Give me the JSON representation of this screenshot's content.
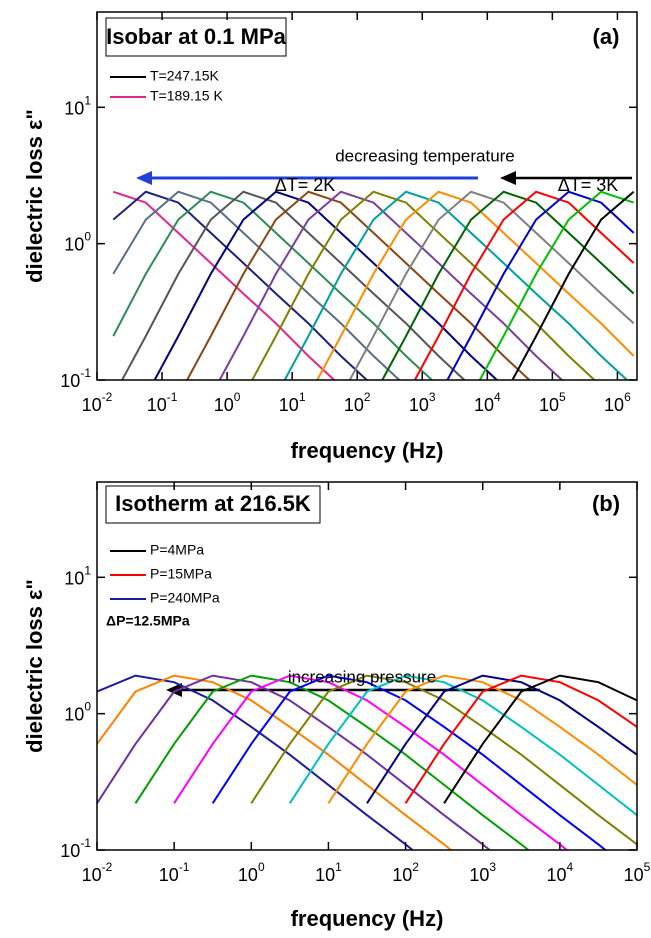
{
  "chart_data": [
    {
      "type": "line",
      "xlabel": "frequency (Hz)",
      "ylabel": "dielectric loss ε\"",
      "xscale": "log",
      "yscale": "log",
      "annotations": [
        "Isobar at 0.1 MPa",
        "(a)",
        "decreasing temperature",
        "ΔT= 2K",
        "ΔT= 3K"
      ],
      "xlim": [
        0.01,
        2000000
      ],
      "ylim": [
        0.1,
        50
      ],
      "xticks": [
        {
          "value": 0.01,
          "label": "10",
          "exponent": "-2"
        },
        {
          "value": 0.1,
          "label": "10",
          "exponent": "-1"
        },
        {
          "value": 1,
          "label": "10",
          "exponent": "0"
        },
        {
          "value": 10,
          "label": "10",
          "exponent": "1"
        },
        {
          "value": 100,
          "label": "10",
          "exponent": "2"
        },
        {
          "value": 1000,
          "label": "10",
          "exponent": "3"
        },
        {
          "value": 10000,
          "label": "10",
          "exponent": "4"
        },
        {
          "value": 100000,
          "label": "10",
          "exponent": "5"
        },
        {
          "value": 1000000,
          "label": "10",
          "exponent": "6"
        }
      ],
      "yticks": [
        {
          "value": 0.1,
          "label": "10",
          "exponent": "-1"
        },
        {
          "value": 1,
          "label": "10",
          "exponent": "0"
        },
        {
          "value": 10,
          "label": "10",
          "exponent": "1"
        }
      ],
      "x": [
        0.0178,
        0.0562,
        0.178,
        0.562,
        1.78,
        5.62,
        17.8,
        56.2,
        178,
        562,
        1780,
        5620,
        17800,
        56200,
        178000,
        562000,
        1780000
      ],
      "series": [
        {
          "name": "T=189.15 K",
          "color": "#e6268c",
          "values": [
            2.4,
            2.0,
            1.2,
            0.72,
            0.43,
            0.26,
            0.15,
            0.09,
            null,
            null,
            null,
            null,
            null,
            null,
            null,
            null,
            null
          ]
        },
        {
          "color": "#1a237e",
          "values": [
            1.5,
            2.4,
            2.0,
            1.2,
            0.72,
            0.43,
            0.26,
            0.15,
            0.09,
            null,
            null,
            null,
            null,
            null,
            null,
            null,
            null
          ]
        },
        {
          "color": "#5a6e8c",
          "values": [
            0.6,
            1.5,
            2.4,
            2.0,
            1.2,
            0.72,
            0.43,
            0.26,
            0.15,
            0.09,
            null,
            null,
            null,
            null,
            null,
            null,
            null
          ]
        },
        {
          "color": "#2e8b57",
          "values": [
            0.21,
            0.6,
            1.5,
            2.4,
            2.0,
            1.2,
            0.72,
            0.43,
            0.26,
            0.15,
            0.09,
            null,
            null,
            null,
            null,
            null,
            null
          ]
        },
        {
          "color": "#555555",
          "values": [
            0.076,
            0.21,
            0.6,
            1.5,
            2.4,
            2.0,
            1.2,
            0.72,
            0.43,
            0.26,
            0.15,
            0.09,
            null,
            null,
            null,
            null,
            null
          ]
        },
        {
          "color": "#000080",
          "values": [
            null,
            0.076,
            0.21,
            0.6,
            1.5,
            2.4,
            2.0,
            1.2,
            0.72,
            0.43,
            0.26,
            0.15,
            0.09,
            null,
            null,
            null,
            null
          ]
        },
        {
          "color": "#8b4513",
          "values": [
            null,
            null,
            0.076,
            0.21,
            0.6,
            1.5,
            2.4,
            2.0,
            1.2,
            0.72,
            0.43,
            0.26,
            0.15,
            0.09,
            null,
            null,
            null
          ]
        },
        {
          "color": "#7b3f9e",
          "values": [
            null,
            null,
            null,
            0.076,
            0.21,
            0.6,
            1.5,
            2.4,
            2.0,
            1.2,
            0.72,
            0.43,
            0.26,
            0.15,
            0.09,
            null,
            null
          ]
        },
        {
          "color": "#808000",
          "values": [
            null,
            null,
            null,
            null,
            0.076,
            0.21,
            0.6,
            1.5,
            2.4,
            2.0,
            1.2,
            0.72,
            0.43,
            0.26,
            0.15,
            0.09,
            null
          ]
        },
        {
          "color": "#00a0a0",
          "values": [
            null,
            null,
            null,
            null,
            null,
            0.076,
            0.21,
            0.6,
            1.5,
            2.4,
            2.0,
            1.2,
            0.72,
            0.43,
            0.26,
            0.15,
            0.09
          ]
        },
        {
          "color": "#ff8c00",
          "values": [
            null,
            null,
            null,
            null,
            null,
            null,
            0.076,
            0.21,
            0.6,
            1.5,
            2.4,
            2.0,
            1.2,
            0.72,
            0.43,
            0.26,
            0.15
          ]
        },
        {
          "color": "#808080",
          "values": [
            null,
            null,
            null,
            null,
            null,
            null,
            null,
            0.076,
            0.21,
            0.6,
            1.5,
            2.4,
            2.0,
            1.2,
            0.72,
            0.43,
            0.26
          ]
        },
        {
          "color": "#006400",
          "values": [
            null,
            null,
            null,
            null,
            null,
            null,
            null,
            null,
            0.076,
            0.21,
            0.6,
            1.5,
            2.4,
            2.0,
            1.2,
            0.72,
            0.43
          ]
        },
        {
          "color": "#ff0000",
          "values": [
            null,
            null,
            null,
            null,
            null,
            null,
            null,
            null,
            null,
            0.076,
            0.21,
            0.6,
            1.5,
            2.4,
            2.0,
            1.2,
            0.72
          ]
        },
        {
          "color": "#0000cd",
          "values": [
            null,
            null,
            null,
            null,
            null,
            null,
            null,
            null,
            null,
            null,
            0.076,
            0.21,
            0.6,
            1.5,
            2.4,
            2.0,
            1.2
          ]
        },
        {
          "color": "#00c000",
          "values": [
            null,
            null,
            null,
            null,
            null,
            null,
            null,
            null,
            null,
            null,
            null,
            0.076,
            0.21,
            0.6,
            1.5,
            2.4,
            2.0
          ]
        },
        {
          "name": "T=247.15K",
          "color": "#000000",
          "values": [
            null,
            null,
            null,
            null,
            null,
            null,
            null,
            null,
            null,
            null,
            null,
            null,
            0.076,
            0.21,
            0.6,
            1.5,
            2.4
          ]
        }
      ]
    },
    {
      "type": "line",
      "xlabel": "frequency (Hz)",
      "ylabel": "dielectric loss ε\"",
      "xscale": "log",
      "yscale": "log",
      "annotations": [
        "Isotherm at 216.5K",
        "(b)",
        "increasing pressure",
        "ΔP=12.5MPa"
      ],
      "xlim": [
        0.01,
        100000
      ],
      "ylim": [
        0.1,
        50
      ],
      "xticks": [
        {
          "value": 0.01,
          "label": "10",
          "exponent": "-2"
        },
        {
          "value": 0.1,
          "label": "10",
          "exponent": "-1"
        },
        {
          "value": 1,
          "label": "10",
          "exponent": "0"
        },
        {
          "value": 10,
          "label": "10",
          "exponent": "1"
        },
        {
          "value": 100,
          "label": "10",
          "exponent": "2"
        },
        {
          "value": 1000,
          "label": "10",
          "exponent": "3"
        },
        {
          "value": 10000,
          "label": "10",
          "exponent": "4"
        },
        {
          "value": 100000,
          "label": "10",
          "exponent": "5"
        }
      ],
      "yticks": [
        {
          "value": 0.1,
          "label": "10",
          "exponent": "-1"
        },
        {
          "value": 1,
          "label": "10",
          "exponent": "0"
        },
        {
          "value": 10,
          "label": "10",
          "exponent": "1"
        }
      ],
      "x": [
        0.01,
        0.0316,
        0.1,
        0.316,
        1,
        3.16,
        10,
        31.6,
        100,
        316,
        1000,
        3160,
        10000,
        31600,
        100000
      ],
      "series": [
        {
          "name": "P=240MPa",
          "color": "#1c1c9c",
          "values": [
            1.45,
            1.9,
            1.7,
            1.25,
            0.8,
            0.5,
            0.3,
            0.18,
            0.11,
            0.065,
            null,
            null,
            null,
            null,
            null
          ]
        },
        {
          "color": "#ff8000",
          "values": [
            0.6,
            1.45,
            1.9,
            1.7,
            1.25,
            0.8,
            0.5,
            0.3,
            0.18,
            0.11,
            0.065,
            null,
            null,
            null,
            null
          ]
        },
        {
          "color": "#7030a0",
          "values": [
            0.22,
            0.6,
            1.45,
            1.9,
            1.7,
            1.25,
            0.8,
            0.5,
            0.3,
            0.18,
            0.11,
            0.065,
            null,
            null,
            null
          ]
        },
        {
          "color": "#00a000",
          "values": [
            null,
            0.22,
            0.6,
            1.45,
            1.9,
            1.7,
            1.25,
            0.8,
            0.5,
            0.3,
            0.18,
            0.11,
            0.065,
            null,
            null
          ]
        },
        {
          "color": "#ff00ff",
          "values": [
            null,
            null,
            0.22,
            0.6,
            1.45,
            1.9,
            1.7,
            1.25,
            0.8,
            0.5,
            0.3,
            0.18,
            0.11,
            0.065,
            null
          ]
        },
        {
          "color": "#0000ff",
          "values": [
            null,
            null,
            null,
            0.22,
            0.6,
            1.45,
            1.9,
            1.7,
            1.25,
            0.8,
            0.5,
            0.3,
            0.18,
            0.11,
            0.065
          ]
        },
        {
          "color": "#808000",
          "values": [
            null,
            null,
            null,
            null,
            0.22,
            0.6,
            1.45,
            1.9,
            1.7,
            1.25,
            0.8,
            0.5,
            0.3,
            0.18,
            0.11
          ]
        },
        {
          "color": "#00c0c0",
          "values": [
            null,
            null,
            null,
            null,
            null,
            0.22,
            0.6,
            1.45,
            1.9,
            1.7,
            1.25,
            0.8,
            0.5,
            0.3,
            0.18
          ]
        },
        {
          "color": "#ff8c00",
          "values": [
            null,
            null,
            null,
            null,
            null,
            null,
            0.22,
            0.6,
            1.45,
            1.9,
            1.7,
            1.25,
            0.8,
            0.5,
            0.3
          ]
        },
        {
          "color": "#000080",
          "values": [
            null,
            null,
            null,
            null,
            null,
            null,
            null,
            0.22,
            0.6,
            1.45,
            1.9,
            1.7,
            1.25,
            0.8,
            0.5
          ]
        },
        {
          "name": "P=15MPa",
          "color": "#ff0000",
          "values": [
            null,
            null,
            null,
            null,
            null,
            null,
            null,
            null,
            0.22,
            0.6,
            1.45,
            1.9,
            1.7,
            1.25,
            0.8
          ]
        },
        {
          "name": "P=4MPa",
          "color": "#000000",
          "values": [
            null,
            null,
            null,
            null,
            null,
            null,
            null,
            null,
            null,
            0.22,
            0.6,
            1.45,
            1.9,
            1.7,
            1.25
          ]
        }
      ]
    }
  ]
}
